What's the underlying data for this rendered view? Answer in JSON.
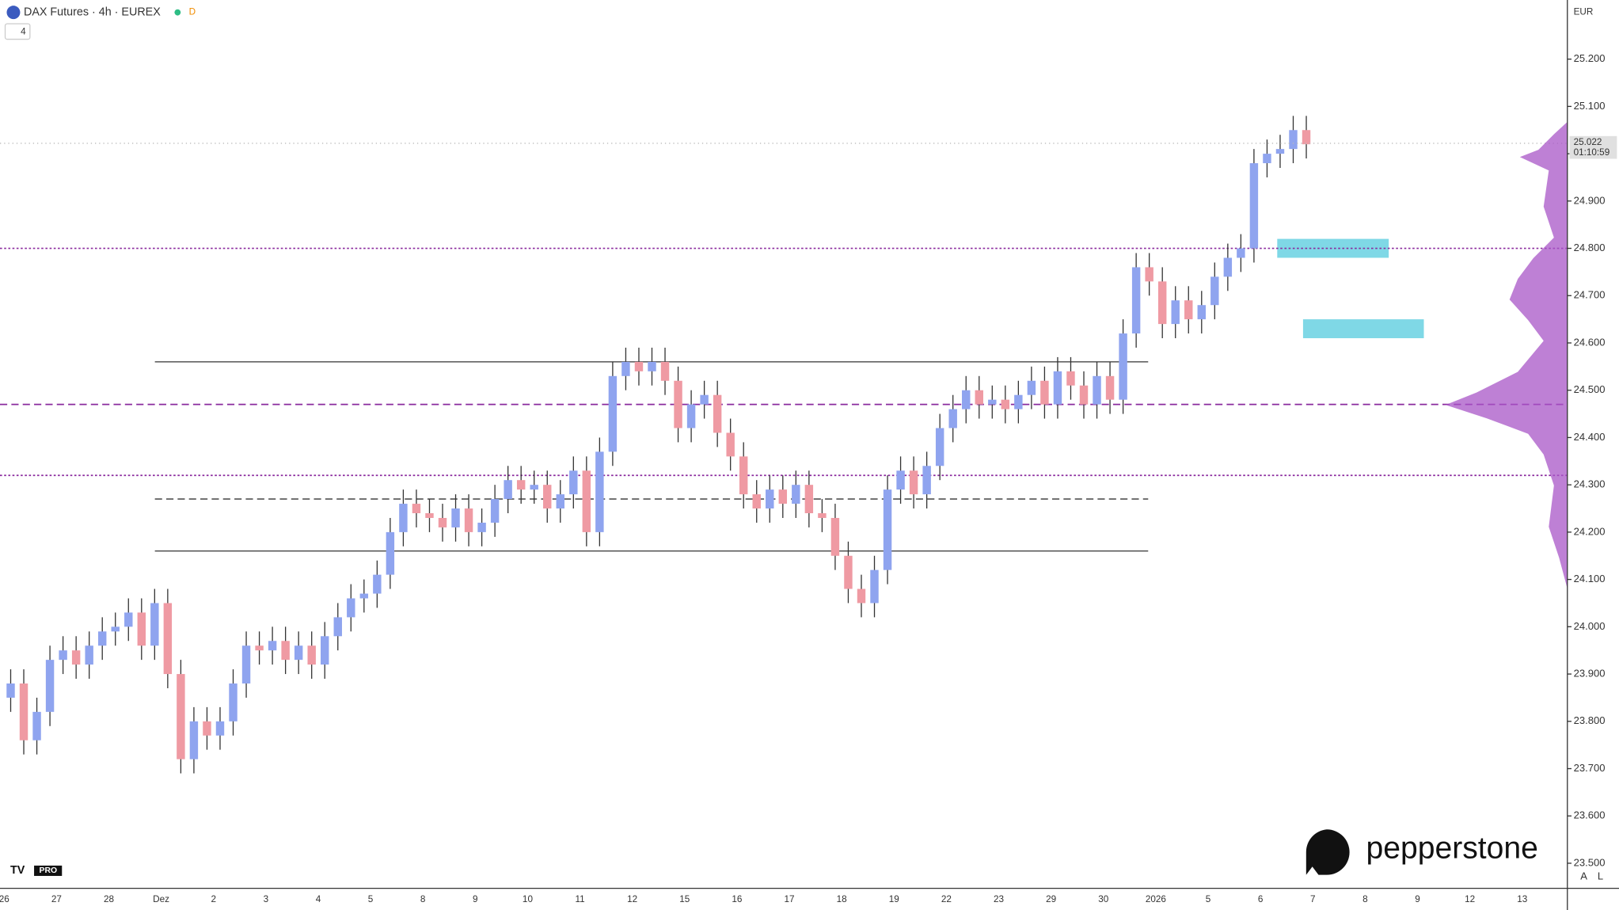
{
  "chart_data": {
    "type": "candlestick",
    "title": "DAX Futures · 4h · EUREX",
    "interval_badge": "D",
    "indicator_count": "4",
    "currency": "EUR",
    "categories": [
      "26",
      "27",
      "28",
      "Dez",
      "2",
      "3",
      "4",
      "5",
      "8",
      "9",
      "10",
      "11",
      "12",
      "15",
      "16",
      "17",
      "18",
      "19",
      "22",
      "23",
      "29",
      "30",
      "2026",
      "5",
      "6",
      "7",
      "8",
      "9",
      "12",
      "13"
    ],
    "open": [
      23850,
      23880,
      23760,
      23820,
      23930,
      23950,
      23920,
      23960,
      23990,
      24000,
      24030,
      23960,
      24050,
      23900,
      23720,
      23800,
      23770,
      23800,
      23880,
      23960,
      23950,
      23970,
      23930,
      23960,
      23920,
      23980,
      24020,
      24060,
      24070,
      24110,
      24200,
      24260,
      24240,
      24230,
      24210,
      24250,
      24200,
      24220,
      24270,
      24310,
      24290,
      24300,
      24250,
      24280,
      24330,
      24200,
      24370,
      24530,
      24560,
      24540,
      24560,
      24520,
      24420,
      24470,
      24490,
      24410,
      24360,
      24280,
      24250,
      24290,
      24260,
      24300,
      24240,
      24230,
      24150,
      24080,
      24050,
      24120,
      24290,
      24330,
      24280,
      24340,
      24420,
      24460,
      24500,
      24470,
      24480,
      24460,
      24490,
      24520,
      24470,
      24540,
      24510,
      24470,
      24530,
      24480,
      24620,
      24760,
      24730,
      24640,
      24690,
      24650,
      24680,
      24740,
      24780,
      24800,
      24980,
      25000,
      25010,
      25050
    ],
    "high": [
      23910,
      23910,
      23850,
      23960,
      23980,
      23980,
      23990,
      24020,
      24030,
      24060,
      24060,
      24080,
      24080,
      23930,
      23830,
      23830,
      23830,
      23910,
      23990,
      23990,
      24000,
      24000,
      23990,
      23990,
      24010,
      24050,
      24090,
      24100,
      24140,
      24230,
      24290,
      24290,
      24270,
      24260,
      24280,
      24280,
      24250,
      24300,
      24340,
      24340,
      24330,
      24330,
      24310,
      24360,
      24360,
      24400,
      24560,
      24590,
      24590,
      24590,
      24590,
      24550,
      24500,
      24520,
      24520,
      24440,
      24390,
      24310,
      24320,
      24320,
      24330,
      24330,
      24270,
      24260,
      24180,
      24110,
      24150,
      24320,
      24360,
      24360,
      24370,
      24450,
      24490,
      24530,
      24530,
      24510,
      24510,
      24520,
      24550,
      24550,
      24570,
      24570,
      24540,
      24560,
      24560,
      24650,
      24790,
      24790,
      24760,
      24720,
      24720,
      24710,
      24770,
      24810,
      24830,
      25010,
      25030,
      25040,
      25080,
      25080
    ],
    "low": [
      23820,
      23730,
      23730,
      23790,
      23900,
      23890,
      23890,
      23930,
      23960,
      23970,
      23930,
      23930,
      23870,
      23690,
      23690,
      23740,
      23740,
      23770,
      23850,
      23920,
      23920,
      23900,
      23900,
      23890,
      23890,
      23950,
      23990,
      24030,
      24040,
      24080,
      24170,
      24210,
      24200,
      24180,
      24180,
      24170,
      24170,
      24190,
      24240,
      24260,
      24260,
      24220,
      24220,
      24250,
      24170,
      24170,
      24340,
      24500,
      24510,
      24510,
      24490,
      24390,
      24390,
      24440,
      24380,
      24330,
      24250,
      24220,
      24220,
      24230,
      24230,
      24210,
      24200,
      24120,
      24050,
      24020,
      24020,
      24090,
      24260,
      24250,
      24250,
      24310,
      24390,
      24430,
      24440,
      24440,
      24430,
      24430,
      24460,
      24440,
      24440,
      24480,
      24440,
      24440,
      24450,
      24450,
      24590,
      24700,
      24610,
      24610,
      24620,
      24620,
      24650,
      24710,
      24750,
      24770,
      24950,
      24970,
      24980,
      24990
    ],
    "close": [
      23880,
      23760,
      23820,
      23930,
      23950,
      23920,
      23960,
      23990,
      24000,
      24030,
      23960,
      24050,
      23900,
      23720,
      23800,
      23770,
      23800,
      23880,
      23960,
      23950,
      23970,
      23930,
      23960,
      23920,
      23980,
      24020,
      24060,
      24070,
      24110,
      24200,
      24260,
      24240,
      24230,
      24210,
      24250,
      24200,
      24220,
      24270,
      24310,
      24290,
      24300,
      24250,
      24280,
      24330,
      24200,
      24370,
      24530,
      24560,
      24540,
      24560,
      24520,
      24420,
      24470,
      24490,
      24410,
      24360,
      24280,
      24250,
      24290,
      24260,
      24300,
      24240,
      24230,
      24150,
      24080,
      24050,
      24120,
      24290,
      24330,
      24280,
      24340,
      24420,
      24460,
      24500,
      24470,
      24480,
      24460,
      24490,
      24520,
      24470,
      24540,
      24510,
      24470,
      24530,
      24480,
      24620,
      24760,
      24730,
      24640,
      24690,
      24650,
      24680,
      24740,
      24780,
      24800,
      24980,
      25000,
      25010,
      25050,
      25020
    ],
    "up_color": "#8fa4ef",
    "down_color": "#ef9aa3",
    "wick_color": "#333333",
    "ylim": [
      23447,
      25325
    ],
    "yticks": [
      {
        "value": 23500,
        "label": "23.500"
      },
      {
        "value": 23600,
        "label": "23.600"
      },
      {
        "value": 23700,
        "label": "23.700"
      },
      {
        "value": 23800,
        "label": "23.800"
      },
      {
        "value": 23900,
        "label": "23.900"
      },
      {
        "value": 24000,
        "label": "24.000"
      },
      {
        "value": 24100,
        "label": "24.100"
      },
      {
        "value": 24200,
        "label": "24.200"
      },
      {
        "value": 24300,
        "label": "24.300"
      },
      {
        "value": 24400,
        "label": "24.400"
      },
      {
        "value": 24500,
        "label": "24.500"
      },
      {
        "value": 24600,
        "label": "24.600"
      },
      {
        "value": 24700,
        "label": "24.700"
      },
      {
        "value": 24800,
        "label": "24.800"
      },
      {
        "value": 24900,
        "label": "24.900"
      },
      {
        "value": 25000,
        "label": "25.000"
      },
      {
        "value": 25100,
        "label": "25.100"
      },
      {
        "value": 25200,
        "label": "25.200"
      }
    ],
    "last_price": {
      "value": 25022,
      "label": "25.022"
    },
    "countdown": "01:10:59",
    "levels": [
      {
        "value": 24800,
        "color": "#8a2a9e",
        "style": "dotted"
      },
      {
        "value": 24320,
        "color": "#8a2a9e",
        "style": "dotted"
      },
      {
        "value": 24470,
        "color": "#8a2a9e",
        "style": "dashed"
      },
      {
        "value": 24560,
        "color": "#333333",
        "style": "solid"
      },
      {
        "value": 24160,
        "color": "#333333",
        "style": "solid"
      },
      {
        "value": 24270,
        "color": "#333333",
        "style": "dashed"
      }
    ],
    "zones": [
      {
        "from": 24780,
        "to": 24820,
        "color": "#7fd8e6"
      },
      {
        "from": 24610,
        "to": 24650,
        "color": "#7fd8e6"
      }
    ],
    "logo": "pepperstone",
    "badge": "PRO",
    "scale_buttons": [
      "A",
      "L"
    ]
  }
}
